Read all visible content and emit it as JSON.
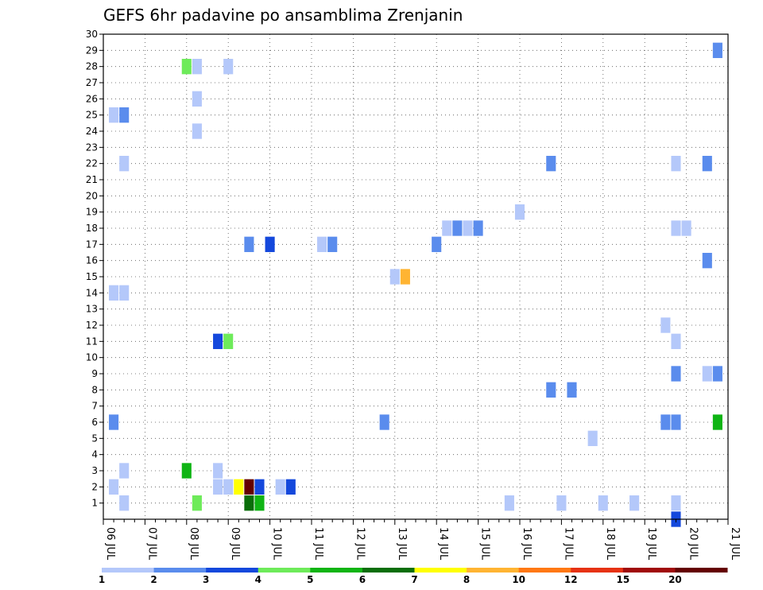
{
  "chart_data": {
    "type": "heatmap",
    "title": "GEFS 6hr padavine po ansamblima Zrenjanin",
    "xlabel": "",
    "ylabel": "",
    "y_ticks": [
      "1",
      "2",
      "3",
      "4",
      "5",
      "6",
      "7",
      "8",
      "9",
      "10",
      "11",
      "12",
      "13",
      "14",
      "15",
      "16",
      "17",
      "18",
      "19",
      "20",
      "21",
      "22",
      "23",
      "24",
      "25",
      "26",
      "27",
      "28",
      "29",
      "30"
    ],
    "ylim": [
      0,
      30
    ],
    "x_labels": [
      "06 JUL",
      "07 JUL",
      "08 JUL",
      "09 JUL",
      "10 JUL",
      "11 JUL",
      "12 JUL",
      "13 JUL",
      "14 JUL",
      "15 JUL",
      "16 JUL",
      "17 JUL",
      "18 JUL",
      "19 JUL",
      "20 JUL",
      "21 JUL"
    ],
    "x_unit": "6hr step from 06 JUL 00z",
    "xlim": [
      0,
      60
    ],
    "grid": true,
    "color_scale": {
      "colors": [
        "#b4c8fa",
        "#5a8ced",
        "#1448dc",
        "#6eeb5a",
        "#0fb414",
        "#0a6e0a",
        "#ffff00",
        "#ffb432",
        "#ff7814",
        "#e63214",
        "#a00a0a",
        "#640000"
      ],
      "labels": [
        "1",
        "2",
        "3",
        "4",
        "5",
        "6",
        "7",
        "8",
        "10",
        "12",
        "15",
        "20"
      ]
    },
    "cells": [
      {
        "x": 1,
        "y": 25,
        "v": 1
      },
      {
        "x": 2,
        "y": 25,
        "v": 2
      },
      {
        "x": 2,
        "y": 22,
        "v": 1
      },
      {
        "x": 1,
        "y": 14,
        "v": 1
      },
      {
        "x": 2,
        "y": 14,
        "v": 1
      },
      {
        "x": 1,
        "y": 6,
        "v": 2
      },
      {
        "x": 2,
        "y": 3,
        "v": 1
      },
      {
        "x": 1,
        "y": 2,
        "v": 1
      },
      {
        "x": 2,
        "y": 1,
        "v": 1
      },
      {
        "x": 8,
        "y": 28,
        "v": 4
      },
      {
        "x": 9,
        "y": 28,
        "v": 1
      },
      {
        "x": 9,
        "y": 26,
        "v": 1
      },
      {
        "x": 9,
        "y": 24,
        "v": 1
      },
      {
        "x": 12,
        "y": 28,
        "v": 1
      },
      {
        "x": 8,
        "y": 3,
        "v": 5
      },
      {
        "x": 9,
        "y": 1,
        "v": 4
      },
      {
        "x": 11,
        "y": 3,
        "v": 1
      },
      {
        "x": 11,
        "y": 2,
        "v": 1
      },
      {
        "x": 12,
        "y": 2,
        "v": 1
      },
      {
        "x": 13,
        "y": 2,
        "v": 7
      },
      {
        "x": 14,
        "y": 2,
        "v": 12
      },
      {
        "x": 15,
        "y": 2,
        "v": 3
      },
      {
        "x": 14,
        "y": 1,
        "v": 6
      },
      {
        "x": 15,
        "y": 1,
        "v": 5
      },
      {
        "x": 11,
        "y": 11,
        "v": 3
      },
      {
        "x": 12,
        "y": 11,
        "v": 4
      },
      {
        "x": 14,
        "y": 17,
        "v": 2
      },
      {
        "x": 16,
        "y": 17,
        "v": 3
      },
      {
        "x": 17,
        "y": 2,
        "v": 1
      },
      {
        "x": 18,
        "y": 2,
        "v": 3
      },
      {
        "x": 21,
        "y": 17,
        "v": 1
      },
      {
        "x": 22,
        "y": 17,
        "v": 2
      },
      {
        "x": 27,
        "y": 6,
        "v": 2
      },
      {
        "x": 28,
        "y": 15,
        "v": 1
      },
      {
        "x": 29,
        "y": 15,
        "v": 8
      },
      {
        "x": 32,
        "y": 17,
        "v": 2
      },
      {
        "x": 33,
        "y": 18,
        "v": 1
      },
      {
        "x": 34,
        "y": 18,
        "v": 2
      },
      {
        "x": 35,
        "y": 18,
        "v": 1
      },
      {
        "x": 36,
        "y": 18,
        "v": 2
      },
      {
        "x": 39,
        "y": 1,
        "v": 1
      },
      {
        "x": 40,
        "y": 19,
        "v": 1
      },
      {
        "x": 43,
        "y": 22,
        "v": 2
      },
      {
        "x": 43,
        "y": 8,
        "v": 2
      },
      {
        "x": 44,
        "y": 1,
        "v": 1
      },
      {
        "x": 45,
        "y": 8,
        "v": 2
      },
      {
        "x": 47,
        "y": 5,
        "v": 1
      },
      {
        "x": 48,
        "y": 1,
        "v": 1
      },
      {
        "x": 51,
        "y": 1,
        "v": 1
      },
      {
        "x": 54,
        "y": 12,
        "v": 1
      },
      {
        "x": 54,
        "y": 6,
        "v": 2
      },
      {
        "x": 55,
        "y": 6,
        "v": 2
      },
      {
        "x": 55,
        "y": 22,
        "v": 1
      },
      {
        "x": 55,
        "y": 18,
        "v": 1
      },
      {
        "x": 56,
        "y": 18,
        "v": 1
      },
      {
        "x": 55,
        "y": 11,
        "v": 1
      },
      {
        "x": 55,
        "y": 9,
        "v": 2
      },
      {
        "x": 55,
        "y": 1,
        "v": 1
      },
      {
        "x": 55,
        "y": 0,
        "v": 3
      },
      {
        "x": 58,
        "y": 22,
        "v": 2
      },
      {
        "x": 58,
        "y": 16,
        "v": 2
      },
      {
        "x": 58,
        "y": 9,
        "v": 1
      },
      {
        "x": 59,
        "y": 9,
        "v": 2
      },
      {
        "x": 59,
        "y": 29,
        "v": 2
      },
      {
        "x": 59,
        "y": 6,
        "v": 5
      }
    ]
  }
}
